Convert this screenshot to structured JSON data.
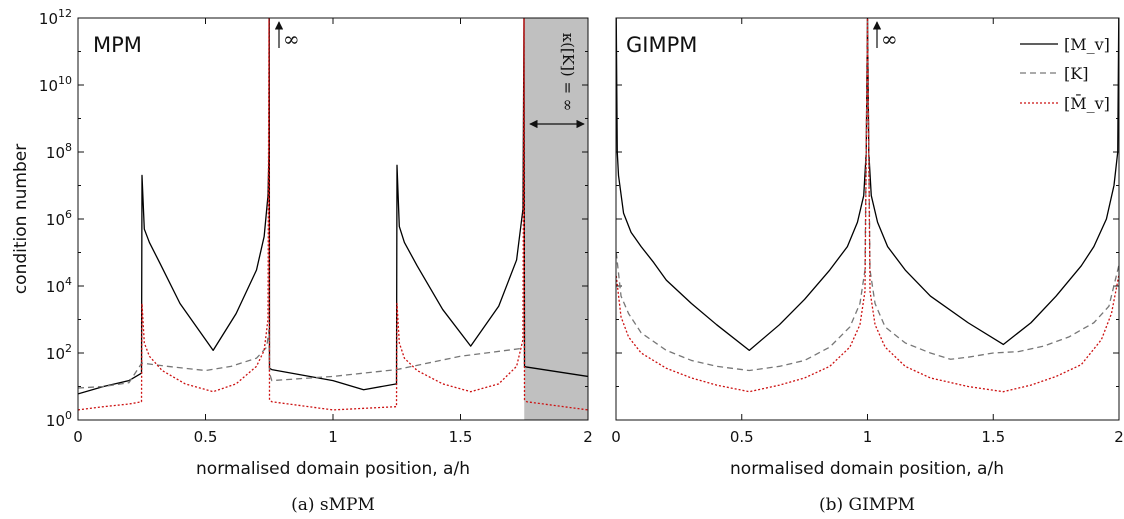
{
  "chart_data": [
    {
      "type": "line",
      "caption": "(a) sMPM",
      "panel_label": "MPM",
      "xlabel": "normalised domain position, a/h",
      "ylabel": "condition number",
      "xlim": [
        0,
        2
      ],
      "ylim": [
        1,
        1000000000000
      ],
      "yscale": "log",
      "x_ticks": [
        "0",
        "0.5",
        "1",
        "1.5",
        "2"
      ],
      "y_ticks": [
        "10^0",
        "10^2",
        "10^4",
        "10^6",
        "10^8",
        "10^10",
        "10^12"
      ],
      "annotations": [
        "∞",
        "κ([K]) = ∞"
      ],
      "shaded_region": [
        1.75,
        2
      ],
      "series": [
        {
          "key": "Mv",
          "color": "#000000",
          "dash": "solid",
          "x": [
            0,
            0.1,
            0.2,
            0.249,
            0.251,
            0.26,
            0.28,
            0.32,
            0.4,
            0.53,
            0.62,
            0.7,
            0.73,
            0.745,
            0.749,
            0.75,
            0.751,
            0.76,
            1.0,
            1.12,
            1.249,
            1.251,
            1.26,
            1.28,
            1.33,
            1.43,
            1.54,
            1.65,
            1.72,
            1.745,
            1.749,
            1.751,
            1.76,
            2.0
          ],
          "y": [
            6,
            10,
            15,
            25,
            20000000,
            500000,
            200000,
            50000,
            3000,
            120,
            1500,
            30000,
            300000,
            5000000,
            100000000,
            1000000000000,
            35,
            32,
            15,
            8,
            12,
            40000000,
            600000,
            200000,
            40000,
            2000,
            160,
            2500,
            60000,
            2000000,
            1000000000000,
            40,
            38,
            20
          ]
        },
        {
          "key": "K",
          "color": "#777777",
          "dash": "dashed",
          "x": [
            0,
            0.1,
            0.2,
            0.25,
            0.35,
            0.5,
            0.6,
            0.7,
            0.74,
            0.749,
            0.751,
            0.76,
            1.0,
            1.25,
            1.5,
            1.75
          ],
          "y": [
            9,
            10,
            13,
            50,
            40,
            30,
            40,
            70,
            150,
            500,
            25,
            15,
            20,
            32,
            80,
            140
          ]
        },
        {
          "key": "Mbar",
          "color": "#cc1111",
          "dash": "dotted",
          "x": [
            0,
            0.1,
            0.2,
            0.249,
            0.251,
            0.26,
            0.28,
            0.33,
            0.42,
            0.53,
            0.62,
            0.7,
            0.73,
            0.745,
            0.749,
            0.751,
            0.76,
            1.0,
            1.249,
            1.251,
            1.26,
            1.28,
            1.33,
            1.43,
            1.54,
            1.65,
            1.72,
            1.745,
            1.749,
            1.751,
            1.76,
            2.0
          ],
          "y": [
            2,
            2.5,
            3,
            3.5,
            3000,
            200,
            80,
            30,
            12,
            7,
            12,
            40,
            120,
            1000,
            1000000000000,
            4,
            3.5,
            2,
            2.5,
            3000,
            200,
            70,
            30,
            12,
            7,
            12,
            40,
            250,
            1000000000000,
            4,
            3.5,
            2
          ]
        }
      ]
    },
    {
      "type": "line",
      "caption": "(b) GIMPM",
      "panel_label": "GIMPM",
      "xlabel": "normalised domain position, a/h",
      "ylabel": "",
      "xlim": [
        0,
        2
      ],
      "ylim": [
        1,
        1000000000000
      ],
      "yscale": "log",
      "x_ticks": [
        "0",
        "0.5",
        "1",
        "1.5",
        "2"
      ],
      "annotations": [
        "∞"
      ],
      "legend": {
        "position": "top-right",
        "entries": [
          {
            "key": "Mv",
            "label": "[M_v]",
            "color": "#000000",
            "dash": "solid"
          },
          {
            "key": "K",
            "label": "[K]",
            "color": "#777777",
            "dash": "dashed"
          },
          {
            "key": "Mbar",
            "label": "[M̄_v]",
            "color": "#cc1111",
            "dash": "dotted"
          }
        ]
      },
      "series": [
        {
          "key": "Mv",
          "color": "#000000",
          "dash": "solid",
          "x": [
            0.001,
            0.005,
            0.01,
            0.03,
            0.06,
            0.1,
            0.15,
            0.2,
            0.3,
            0.4,
            0.53,
            0.65,
            0.75,
            0.85,
            0.92,
            0.96,
            0.985,
            0.995,
            1.0,
            1.005,
            1.015,
            1.04,
            1.08,
            1.15,
            1.25,
            1.4,
            1.54,
            1.65,
            1.75,
            1.85,
            1.9,
            1.95,
            1.98,
            1.995,
            1.999
          ],
          "y": [
            1000000000000,
            100000000,
            20000000,
            1500000,
            400000,
            150000,
            50000,
            15000,
            3000,
            700,
            120,
            700,
            4000,
            30000,
            150000,
            800000,
            5000000,
            100000000,
            1000000000000,
            100000000,
            5000000,
            800000,
            150000,
            30000,
            5000,
            800,
            180,
            800,
            5000,
            40000,
            150000,
            1000000,
            10000000,
            100000000,
            1000000000000
          ]
        },
        {
          "key": "K",
          "color": "#777777",
          "dash": "dashed",
          "x": [
            0.001,
            0.02,
            0.05,
            0.1,
            0.2,
            0.3,
            0.4,
            0.53,
            0.65,
            0.75,
            0.85,
            0.93,
            0.97,
            0.99,
            1.0,
            1.01,
            1.03,
            1.07,
            1.15,
            1.25,
            1.33,
            1.4,
            1.5,
            1.6,
            1.7,
            1.8,
            1.9,
            1.96,
            1.999
          ],
          "y": [
            100000,
            5000,
            1500,
            400,
            120,
            60,
            40,
            30,
            40,
            60,
            150,
            600,
            3000,
            30000,
            1000000000000,
            30000,
            3000,
            600,
            200,
            100,
            65,
            75,
            100,
            110,
            160,
            300,
            800,
            2500,
            40000
          ]
        },
        {
          "key": "Mbar",
          "color": "#cc1111",
          "dash": "dotted",
          "x": [
            0.001,
            0.02,
            0.05,
            0.1,
            0.2,
            0.3,
            0.4,
            0.53,
            0.65,
            0.75,
            0.85,
            0.93,
            0.97,
            0.99,
            1.0,
            1.01,
            1.03,
            1.07,
            1.15,
            1.25,
            1.4,
            1.54,
            1.65,
            1.75,
            1.85,
            1.93,
            1.97,
            1.999
          ],
          "y": [
            20000,
            1200,
            300,
            100,
            35,
            18,
            11,
            7,
            11,
            18,
            40,
            150,
            700,
            7000,
            1000000000000,
            7000,
            700,
            150,
            40,
            18,
            10,
            7,
            11,
            20,
            45,
            250,
            1500,
            20000
          ]
        }
      ]
    }
  ]
}
